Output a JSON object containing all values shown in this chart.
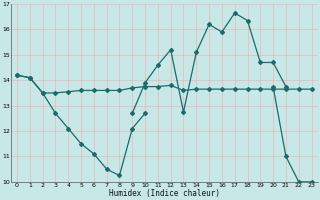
{
  "xlabel": "Humidex (Indice chaleur)",
  "bg_color": "#c8e8e8",
  "line_color": "#1a6b6b",
  "grid_color": "#e8b8b8",
  "xlim": [
    -0.5,
    23.5
  ],
  "ylim": [
    10,
    17
  ],
  "yticks": [
    10,
    11,
    12,
    13,
    14,
    15,
    16,
    17
  ],
  "xticks": [
    0,
    1,
    2,
    3,
    4,
    5,
    6,
    7,
    8,
    9,
    10,
    11,
    12,
    13,
    14,
    15,
    16,
    17,
    18,
    19,
    20,
    21,
    22,
    23
  ],
  "series": [
    {
      "x": [
        0,
        1,
        2,
        3,
        4,
        5,
        6,
        7,
        8,
        9,
        10,
        11,
        12,
        13,
        14,
        15,
        16,
        17,
        18,
        19,
        20,
        21,
        22,
        23
      ],
      "y": [
        14.2,
        14.1,
        13.5,
        13.5,
        13.55,
        13.6,
        13.6,
        13.6,
        13.6,
        13.7,
        13.75,
        13.75,
        13.8,
        13.6,
        13.65,
        13.65,
        13.65,
        13.65,
        13.65,
        13.65,
        13.65,
        13.65,
        13.65,
        13.65
      ]
    },
    {
      "x": [
        0,
        1,
        2,
        3,
        4,
        5,
        6,
        7,
        8,
        9,
        10
      ],
      "y": [
        14.2,
        14.1,
        13.5,
        12.7,
        12.1,
        11.5,
        11.1,
        10.5,
        10.25,
        12.1,
        12.7
      ]
    },
    {
      "x": [
        9,
        10,
        11,
        12,
        13,
        14,
        15,
        16,
        17,
        18,
        19,
        20,
        21
      ],
      "y": [
        12.7,
        13.9,
        14.6,
        15.2,
        12.75,
        15.1,
        16.2,
        15.9,
        16.65,
        16.35,
        14.7,
        14.7,
        13.75
      ]
    },
    {
      "x": [
        20,
        21,
        22,
        23
      ],
      "y": [
        13.75,
        11.0,
        10.0,
        10.0
      ]
    }
  ]
}
